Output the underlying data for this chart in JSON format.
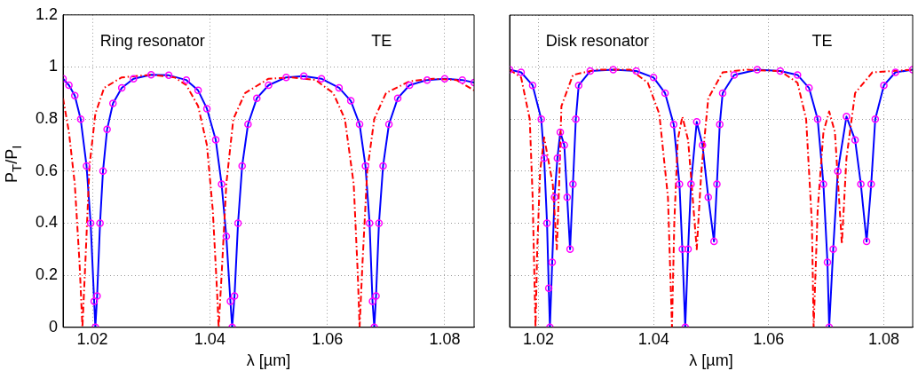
{
  "chart_data": [
    {
      "type": "line",
      "annotations": [
        "Ring resonator",
        "TE"
      ],
      "xlabel": "λ [µm]",
      "ylabel": "P$_{T}$/P$_{I}$",
      "xlim": [
        1.015,
        1.085
      ],
      "xticks": [
        1.02,
        1.04,
        1.06,
        1.08
      ],
      "ylim": [
        0,
        1.2
      ],
      "yticks": [
        0,
        0.2,
        0.4,
        0.6,
        0.8,
        1,
        1.2
      ],
      "grid": true,
      "legend": false,
      "series": [
        {
          "type": "line",
          "color": "#ff0000",
          "line_style": "dashed",
          "marker": "none",
          "x": [
            1.015,
            1.016,
            1.017,
            1.0178,
            1.0183,
            1.0188,
            1.0195,
            1.0205,
            1.022,
            1.025,
            1.03,
            1.034,
            1.036,
            1.038,
            1.0395,
            1.0405,
            1.0412,
            1.0415,
            1.042,
            1.0428,
            1.044,
            1.046,
            1.05,
            1.054,
            1.058,
            1.061,
            1.063,
            1.0645,
            1.0652,
            1.0655,
            1.066,
            1.0668,
            1.068,
            1.07,
            1.074,
            1.078,
            1.082,
            1.085
          ],
          "values": [
            0.88,
            0.75,
            0.55,
            0.25,
            0,
            0.25,
            0.62,
            0.82,
            0.92,
            0.96,
            0.97,
            0.96,
            0.93,
            0.85,
            0.7,
            0.45,
            0.15,
            0,
            0.2,
            0.55,
            0.8,
            0.9,
            0.955,
            0.96,
            0.95,
            0.9,
            0.8,
            0.55,
            0.2,
            0,
            0.25,
            0.6,
            0.8,
            0.9,
            0.945,
            0.955,
            0.95,
            0.91
          ]
        },
        {
          "type": "line",
          "color": "#0000ff",
          "line_style": "solid",
          "marker": "none",
          "x": [
            1.015,
            1.016,
            1.017,
            1.018,
            1.019,
            1.0197,
            1.0203,
            1.0205,
            1.0208,
            1.0213,
            1.0218,
            1.0225,
            1.0235,
            1.025,
            1.027,
            1.03,
            1.033,
            1.036,
            1.038,
            1.0395,
            1.041,
            1.042,
            1.0428,
            1.0435,
            1.0438,
            1.0442,
            1.0448,
            1.0455,
            1.0465,
            1.048,
            1.05,
            1.053,
            1.056,
            1.059,
            1.062,
            1.064,
            1.0655,
            1.0665,
            1.0672,
            1.0677,
            1.068,
            1.0683,
            1.0688,
            1.0695,
            1.0705,
            1.072,
            1.074,
            1.077,
            1.08,
            1.083,
            1.085
          ],
          "values": [
            0.955,
            0.93,
            0.89,
            0.8,
            0.62,
            0.4,
            0.1,
            0,
            0.12,
            0.4,
            0.6,
            0.76,
            0.86,
            0.92,
            0.955,
            0.97,
            0.968,
            0.95,
            0.91,
            0.84,
            0.72,
            0.55,
            0.35,
            0.1,
            0,
            0.12,
            0.4,
            0.62,
            0.78,
            0.88,
            0.93,
            0.96,
            0.965,
            0.955,
            0.92,
            0.87,
            0.78,
            0.62,
            0.4,
            0.1,
            0,
            0.12,
            0.4,
            0.62,
            0.78,
            0.88,
            0.93,
            0.95,
            0.955,
            0.95,
            0.94
          ]
        },
        {
          "type": "scatter",
          "color": "#ff00ff",
          "marker": "circle",
          "x": [
            1.015,
            1.016,
            1.017,
            1.018,
            1.019,
            1.0197,
            1.0203,
            1.0205,
            1.0208,
            1.0213,
            1.0218,
            1.0225,
            1.0235,
            1.025,
            1.027,
            1.03,
            1.033,
            1.036,
            1.038,
            1.0395,
            1.041,
            1.042,
            1.0428,
            1.0435,
            1.0438,
            1.0442,
            1.0448,
            1.0455,
            1.0465,
            1.048,
            1.05,
            1.053,
            1.056,
            1.059,
            1.062,
            1.064,
            1.0655,
            1.0665,
            1.0672,
            1.0677,
            1.068,
            1.0683,
            1.0688,
            1.0695,
            1.0705,
            1.072,
            1.074,
            1.077,
            1.08,
            1.083,
            1.085
          ],
          "values": [
            0.955,
            0.93,
            0.89,
            0.8,
            0.62,
            0.4,
            0.1,
            0,
            0.12,
            0.4,
            0.6,
            0.76,
            0.86,
            0.92,
            0.955,
            0.97,
            0.968,
            0.95,
            0.91,
            0.84,
            0.72,
            0.55,
            0.35,
            0.1,
            0,
            0.12,
            0.4,
            0.62,
            0.78,
            0.88,
            0.93,
            0.96,
            0.965,
            0.955,
            0.92,
            0.87,
            0.78,
            0.62,
            0.4,
            0.1,
            0,
            0.12,
            0.4,
            0.62,
            0.78,
            0.88,
            0.93,
            0.95,
            0.955,
            0.95,
            0.94
          ]
        }
      ]
    },
    {
      "type": "line",
      "annotations": [
        "Disk resonator",
        "TE"
      ],
      "xlabel": "λ [µm]",
      "xlim": [
        1.015,
        1.085
      ],
      "xticks": [
        1.02,
        1.04,
        1.06,
        1.08
      ],
      "ylim": [
        0,
        1.2
      ],
      "yticks": [
        0,
        0.2,
        0.4,
        0.6,
        0.8,
        1,
        1.2
      ],
      "grid": true,
      "legend": false,
      "tick_labels": "x",
      "series": [
        {
          "type": "line",
          "color": "#ff0000",
          "line_style": "dashed",
          "marker": "none",
          "x": [
            1.015,
            1.017,
            1.0185,
            1.019,
            1.0195,
            1.0198,
            1.0203,
            1.021,
            1.0225,
            1.0232,
            1.0236,
            1.024,
            1.026,
            1.03,
            1.036,
            1.039,
            1.041,
            1.0425,
            1.0432,
            1.0436,
            1.0442,
            1.045,
            1.046,
            1.0475,
            1.0483,
            1.0495,
            1.052,
            1.056,
            1.062,
            1.065,
            1.0665,
            1.0675,
            1.0678,
            1.0685,
            1.0695,
            1.0705,
            1.0715,
            1.0727,
            1.0735,
            1.075,
            1.078,
            1.085
          ],
          "values": [
            0.99,
            0.96,
            0.8,
            0.5,
            0,
            0.3,
            0.6,
            0.73,
            0.55,
            0.3,
            0.55,
            0.85,
            0.97,
            0.99,
            0.99,
            0.94,
            0.82,
            0.5,
            0,
            0.4,
            0.72,
            0.81,
            0.72,
            0.3,
            0.6,
            0.88,
            0.98,
            0.99,
            0.985,
            0.94,
            0.8,
            0.4,
            0,
            0.45,
            0.75,
            0.83,
            0.75,
            0.32,
            0.65,
            0.9,
            0.98,
            0.99
          ]
        },
        {
          "type": "line",
          "color": "#0000ff",
          "line_style": "solid",
          "marker": "none",
          "x": [
            1.015,
            1.017,
            1.019,
            1.0205,
            1.021,
            1.0215,
            1.0218,
            1.022,
            1.0224,
            1.0228,
            1.0233,
            1.0238,
            1.0245,
            1.025,
            1.0255,
            1.026,
            1.0265,
            1.027,
            1.029,
            1.033,
            1.037,
            1.04,
            1.042,
            1.0435,
            1.0445,
            1.045,
            1.0455,
            1.046,
            1.0465,
            1.0475,
            1.0485,
            1.0495,
            1.0505,
            1.051,
            1.0515,
            1.052,
            1.054,
            1.058,
            1.062,
            1.065,
            1.067,
            1.0685,
            1.0695,
            1.0702,
            1.0705,
            1.0712,
            1.072,
            1.0735,
            1.075,
            1.076,
            1.077,
            1.0778,
            1.0785,
            1.08,
            1.082,
            1.085
          ],
          "values": [
            0.99,
            0.98,
            0.93,
            0.8,
            0.65,
            0.4,
            0.15,
            0,
            0.25,
            0.5,
            0.65,
            0.75,
            0.7,
            0.5,
            0.3,
            0.55,
            0.8,
            0.93,
            0.985,
            0.99,
            0.985,
            0.96,
            0.9,
            0.78,
            0.55,
            0.3,
            0,
            0.3,
            0.55,
            0.79,
            0.7,
            0.5,
            0.33,
            0.55,
            0.78,
            0.9,
            0.97,
            0.99,
            0.985,
            0.97,
            0.92,
            0.8,
            0.55,
            0.25,
            0,
            0.3,
            0.6,
            0.81,
            0.72,
            0.55,
            0.33,
            0.55,
            0.8,
            0.93,
            0.98,
            0.99
          ]
        },
        {
          "type": "scatter",
          "color": "#ff00ff",
          "marker": "circle",
          "x": [
            1.015,
            1.017,
            1.019,
            1.0205,
            1.021,
            1.0215,
            1.0218,
            1.022,
            1.0224,
            1.0228,
            1.0233,
            1.0238,
            1.0245,
            1.025,
            1.0255,
            1.026,
            1.0265,
            1.027,
            1.029,
            1.033,
            1.037,
            1.04,
            1.042,
            1.0435,
            1.0445,
            1.045,
            1.0455,
            1.046,
            1.0465,
            1.0475,
            1.0485,
            1.0495,
            1.0505,
            1.051,
            1.0515,
            1.052,
            1.054,
            1.058,
            1.062,
            1.065,
            1.067,
            1.0685,
            1.0695,
            1.0702,
            1.0705,
            1.0712,
            1.072,
            1.0735,
            1.075,
            1.076,
            1.077,
            1.0778,
            1.0785,
            1.08,
            1.082,
            1.085
          ],
          "values": [
            0.99,
            0.98,
            0.93,
            0.8,
            0.65,
            0.4,
            0.15,
            0,
            0.25,
            0.5,
            0.65,
            0.75,
            0.7,
            0.5,
            0.3,
            0.55,
            0.8,
            0.93,
            0.985,
            0.99,
            0.985,
            0.96,
            0.9,
            0.78,
            0.55,
            0.3,
            0,
            0.3,
            0.55,
            0.79,
            0.7,
            0.5,
            0.33,
            0.55,
            0.78,
            0.9,
            0.97,
            0.99,
            0.985,
            0.97,
            0.92,
            0.8,
            0.55,
            0.25,
            0,
            0.3,
            0.6,
            0.81,
            0.72,
            0.55,
            0.33,
            0.55,
            0.8,
            0.93,
            0.98,
            0.99
          ]
        }
      ]
    }
  ]
}
